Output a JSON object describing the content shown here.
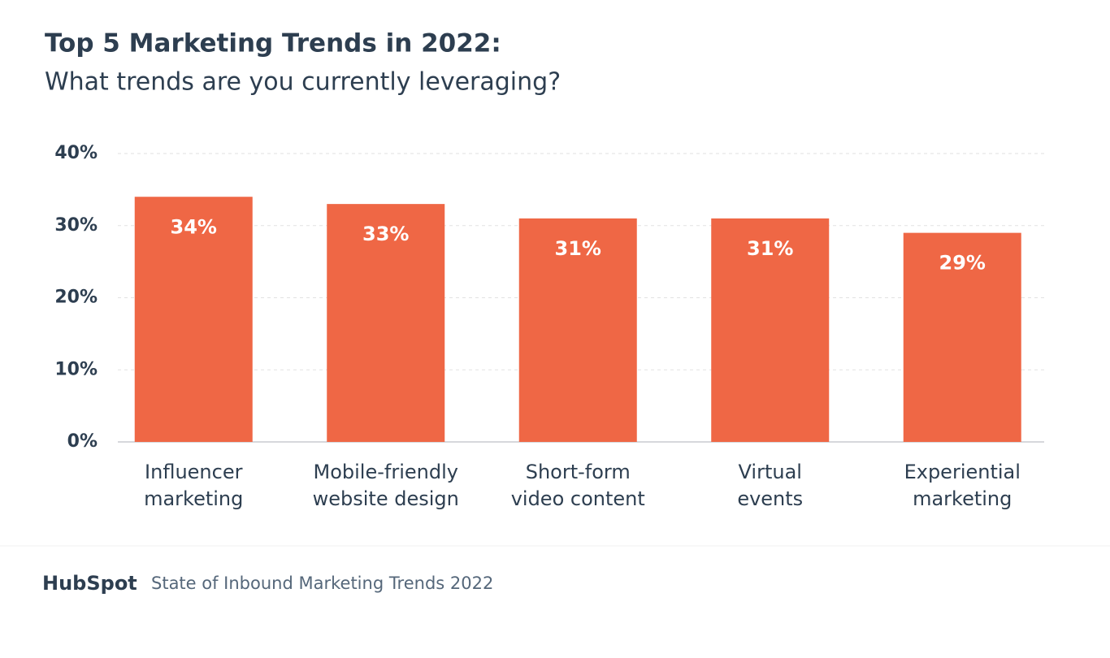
{
  "chart_data": {
    "type": "bar",
    "title": "Top 5 Marketing Trends in 2022:",
    "subtitle": "What trends are you currently leveraging?",
    "categories": [
      "Influencer\nmarketing",
      "Mobile-friendly\nwebsite design",
      "Short-form\nvideo content",
      "Virtual\nevents",
      "Experiential\nmarketing"
    ],
    "values": [
      34,
      33,
      31,
      31,
      29
    ],
    "value_labels": [
      "34%",
      "33%",
      "31%",
      "31%",
      "29%"
    ],
    "color": "#ef6745",
    "ylim": [
      0,
      40
    ],
    "yticks": [
      {
        "value": 0,
        "label": "0%"
      },
      {
        "value": 10,
        "label": "10%"
      },
      {
        "value": 20,
        "label": "20%"
      },
      {
        "value": 30,
        "label": "30%"
      },
      {
        "value": 40,
        "label": "40%"
      }
    ],
    "grid": true
  },
  "footer": {
    "logo": "HubSpot",
    "source": "State of Inbound Marketing Trends 2022"
  }
}
